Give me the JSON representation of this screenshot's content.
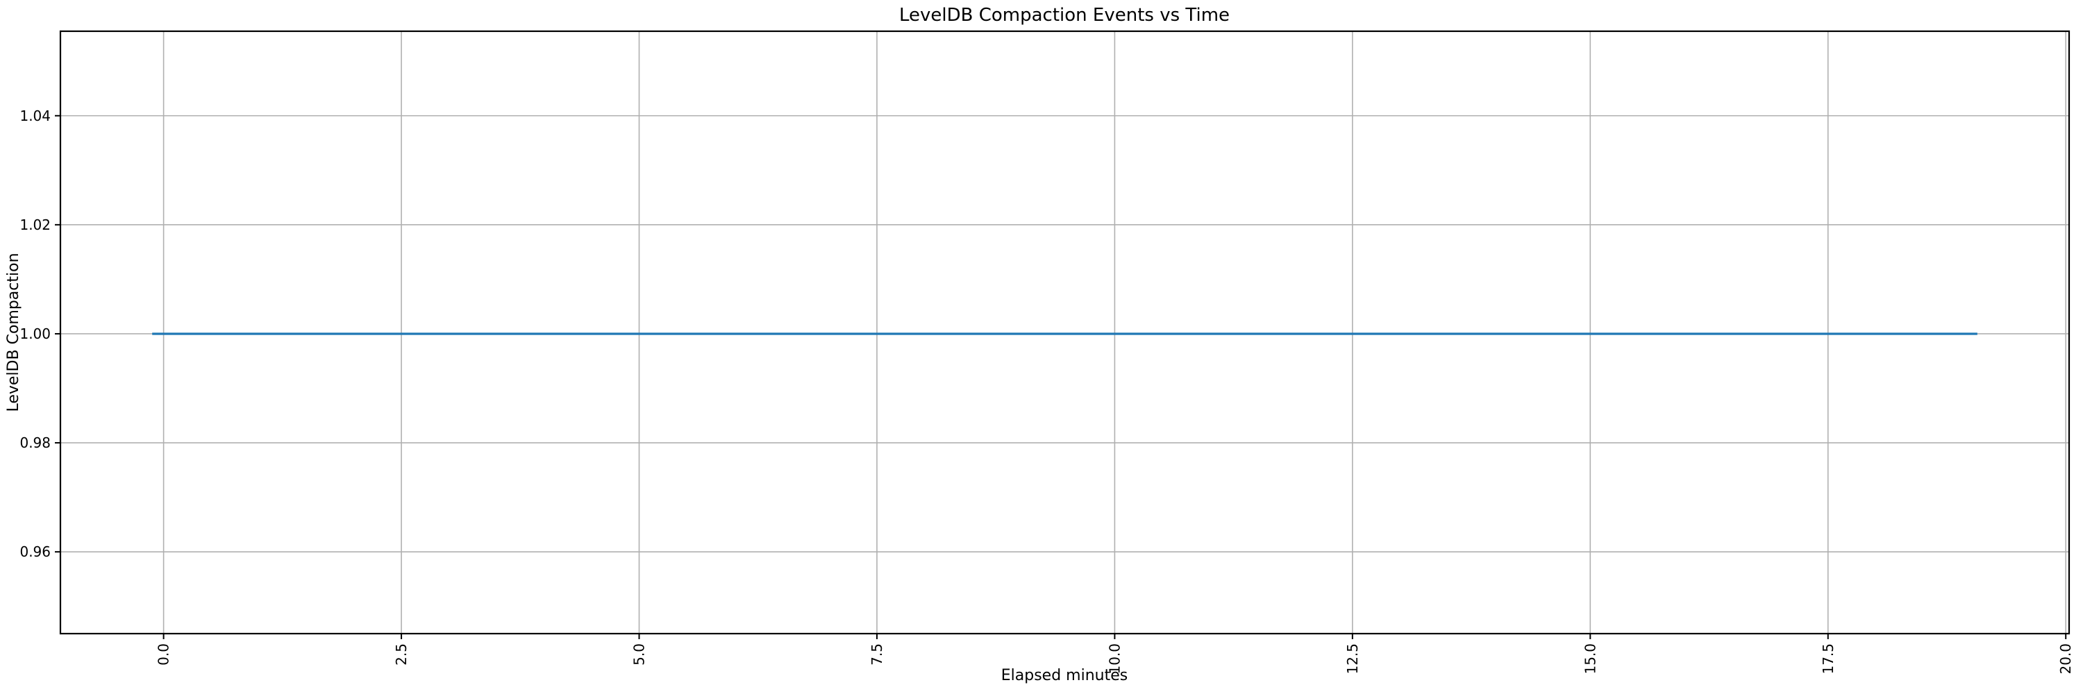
{
  "figure": {
    "background": "#ffffff"
  },
  "chart_data": {
    "type": "line",
    "title": "LevelDB Compaction Events vs Time",
    "xlabel": "Elapsed minutes",
    "ylabel": "LevelDB Compaction",
    "xlim": [
      -1.085,
      20.035
    ],
    "ylim": [
      0.945,
      1.0555
    ],
    "x_ticks": [
      0.0,
      2.5,
      5.0,
      7.5,
      10.0,
      12.5,
      15.0,
      17.5,
      20.0
    ],
    "x_tick_labels": [
      "0.0",
      "2.5",
      "5.0",
      "7.5",
      "10.0",
      "12.5",
      "15.0",
      "17.5",
      "20.0"
    ],
    "x_tick_labels_rotation": -90,
    "y_ticks": [
      0.96,
      0.98,
      1.0,
      1.02,
      1.04
    ],
    "y_tick_labels": [
      "0.96",
      "0.98",
      "1.00",
      "1.02",
      "1.04"
    ],
    "grid": true,
    "legend": false,
    "grid_color": "#b0b0b0",
    "axis_color": "#000000",
    "series": [
      {
        "name": "LevelDB Compaction",
        "color": "#1f77b4",
        "linewidth": 3.2,
        "points": [
          [
            -0.12,
            1.0
          ],
          [
            19.07,
            1.0
          ]
        ],
        "description": "Constant value 1.0 for every compaction event sample from about 0 to 19 elapsed minutes"
      }
    ]
  }
}
